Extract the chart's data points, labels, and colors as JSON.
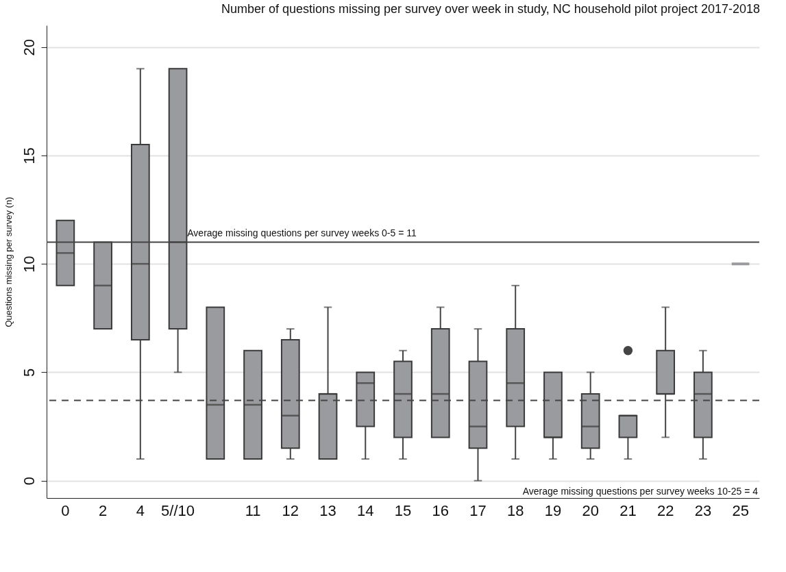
{
  "chart_data": {
    "type": "box",
    "title": "Number of questions missing per survey over week in study, NC household pilot project 2017-2018",
    "ylabel": "Questions missing per survey (n)",
    "categories": [
      "0",
      "2",
      "4",
      "5//10",
      null,
      "11",
      "12",
      "13",
      "14",
      "15",
      "16",
      "17",
      "18",
      "19",
      "20",
      "21",
      "22",
      "23",
      "25"
    ],
    "color": "#9a9b9e",
    "boxes": [
      {
        "low": 9,
        "q1": 9,
        "median": 10.5,
        "q3": 12,
        "high": 12
      },
      {
        "low": 7,
        "q1": 7,
        "median": 9,
        "q3": 11,
        "high": 11
      },
      {
        "low": 1,
        "q1": 6.5,
        "median": 10,
        "q3": 15.5,
        "high": 19
      },
      {
        "low": 5,
        "q1": 7,
        "median": 11,
        "q3": 19,
        "high": 19
      },
      {
        "low": 1,
        "q1": 1,
        "median": 3.5,
        "q3": 8,
        "high": 8
      },
      {
        "low": 1,
        "q1": 1,
        "median": 3.5,
        "q3": 6,
        "high": 6
      },
      {
        "low": 1,
        "q1": 1.5,
        "median": 3,
        "q3": 6.5,
        "high": 7
      },
      {
        "low": 1,
        "q1": 1,
        "median": 4,
        "q3": 4,
        "high": 8
      },
      {
        "low": 1,
        "q1": 2.5,
        "median": 4.5,
        "q3": 5,
        "high": 5
      },
      {
        "low": 1,
        "q1": 2,
        "median": 4,
        "q3": 5.5,
        "high": 6
      },
      {
        "low": 2,
        "q1": 2,
        "median": 4,
        "q3": 7,
        "high": 8
      },
      {
        "low": 0,
        "q1": 1.5,
        "median": 2.5,
        "q3": 5.5,
        "high": 7
      },
      {
        "low": 1,
        "q1": 2.5,
        "median": 4.5,
        "q3": 7,
        "high": 9
      },
      {
        "low": 1,
        "q1": 2,
        "median": 2,
        "q3": 5,
        "high": 5
      },
      {
        "low": 1,
        "q1": 1.5,
        "median": 2.5,
        "q3": 4,
        "high": 5
      },
      {
        "low": 1,
        "q1": 2,
        "median": 3,
        "q3": 3,
        "high": 3,
        "outliers": [
          6
        ]
      },
      {
        "low": 2,
        "q1": 4,
        "median": 4,
        "q3": 6,
        "high": 8
      },
      {
        "low": 1,
        "q1": 2,
        "median": 4,
        "q3": 5,
        "high": 6
      },
      {
        "low": 10,
        "q1": 10,
        "median": 10,
        "q3": 10,
        "high": 10
      }
    ],
    "ylim": [
      -0.8,
      21
    ],
    "yticks": [
      0,
      5,
      10,
      15,
      20
    ],
    "grid": "y",
    "ref_lines": [
      {
        "axis": "y",
        "value": 11,
        "label": "Average missing questions per survey weeks 0-5 = 11",
        "line_style": "solid"
      },
      {
        "axis": "y",
        "value": 3.7,
        "line_style": "dashed"
      }
    ],
    "annotations": [
      "Average missing questions per survey weeks 10-25 = 4"
    ]
  }
}
